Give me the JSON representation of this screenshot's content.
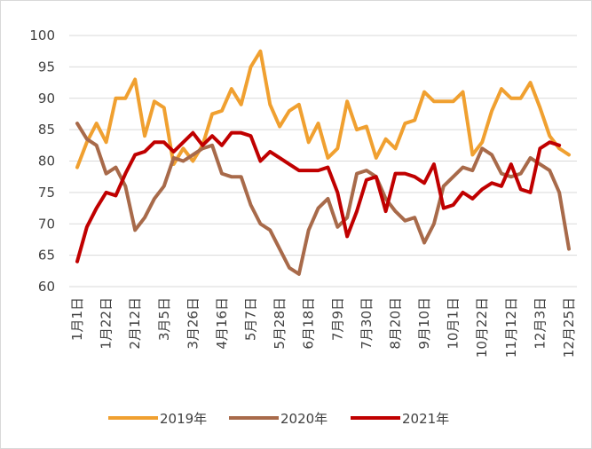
{
  "chart_data": {
    "type": "line",
    "categories": [
      "1月1日",
      null,
      null,
      "1月22日",
      null,
      null,
      "2月12日",
      null,
      null,
      "3月5日",
      null,
      null,
      "3月26日",
      null,
      null,
      "4月16日",
      null,
      null,
      "5月7日",
      null,
      null,
      "5月28日",
      null,
      null,
      "6月18日",
      null,
      null,
      "7月9日",
      null,
      null,
      "7月30日",
      null,
      null,
      "8月20日",
      null,
      null,
      "9月10日",
      null,
      null,
      "10月1日",
      null,
      null,
      "10月22日",
      null,
      null,
      "11月12日",
      null,
      null,
      "12月3日",
      null,
      null,
      "12月25日"
    ],
    "series": [
      {
        "name": "2019年",
        "color": "#f0a030",
        "values": [
          79,
          83,
          86,
          83,
          90,
          90,
          93,
          84,
          89.5,
          88.5,
          79.5,
          82,
          80,
          82.5,
          87.5,
          88,
          91.5,
          89,
          95,
          97.5,
          89,
          85.5,
          88,
          89,
          83,
          86,
          80.5,
          82,
          89.5,
          85,
          85.5,
          80.5,
          83.5,
          82,
          86,
          86.5,
          91,
          89.5,
          89.5,
          89.5,
          91,
          81,
          83,
          88,
          91.5,
          90,
          90,
          92.5,
          88.5,
          84,
          82,
          81
        ]
      },
      {
        "name": "2020年",
        "color": "#a86a4a",
        "values": [
          86,
          83.5,
          82.5,
          78,
          79,
          76,
          69,
          71,
          74,
          76,
          80.5,
          80,
          81,
          82,
          82.5,
          78,
          77.5,
          77.5,
          73,
          70,
          69,
          66,
          63,
          62,
          69,
          72.5,
          74,
          69.5,
          71,
          78,
          78.5,
          77.5,
          74,
          72,
          70.5,
          71,
          67,
          70,
          76,
          77.5,
          79,
          78.5,
          82,
          81,
          78,
          77.5,
          78,
          80.5,
          79.5,
          78.5,
          75,
          66
        ]
      },
      {
        "name": "2021年",
        "color": "#c00000",
        "values": [
          64,
          69.5,
          72.5,
          75,
          74.5,
          78,
          81,
          81.5,
          83,
          83,
          81.5,
          83,
          84.5,
          82.5,
          84,
          82.5,
          84.5,
          84.5,
          84,
          80,
          81.5,
          80.5,
          79.5,
          78.5,
          78.5,
          78.5,
          79,
          75,
          68,
          72,
          77,
          77.5,
          72,
          78,
          78,
          77.5,
          76.5,
          79.5,
          72.5,
          73,
          75,
          74,
          75.5,
          76.5,
          76,
          79.5,
          75.5,
          75,
          82,
          83,
          82.5,
          null
        ]
      }
    ],
    "ylim": [
      60,
      100
    ],
    "yticks": [
      60,
      65,
      70,
      75,
      80,
      85,
      90,
      95,
      100
    ],
    "grid": true,
    "legend": "bottom"
  }
}
